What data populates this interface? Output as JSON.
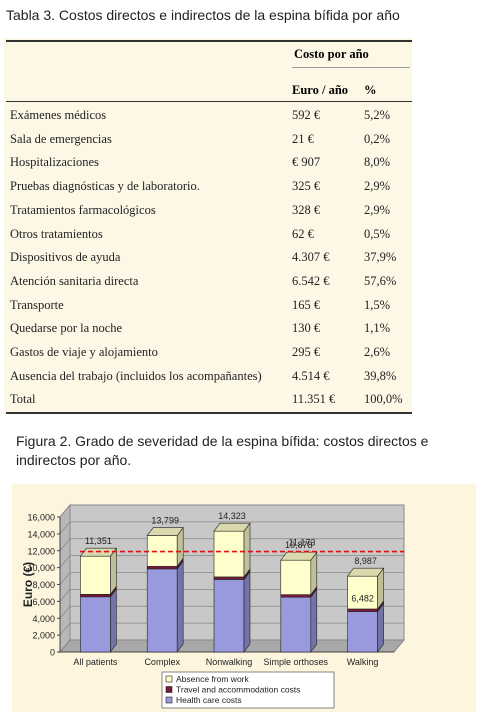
{
  "table": {
    "caption": "Tabla 3. Costos directos e indirectos de la espina bífida por año",
    "group_header": "Costo por año",
    "col_euro": "Euro / año",
    "col_pct": "%",
    "rows": [
      {
        "label": "Exámenes médicos",
        "euro": "592 €",
        "pct": "5,2%"
      },
      {
        "label": "Sala de emergencias",
        "euro": "21 €",
        "pct": "0,2%"
      },
      {
        "label": "Hospitalizaciones",
        "euro": "€ 907",
        "pct": "8,0%"
      },
      {
        "label": "Pruebas diagnósticas y de laboratorio.",
        "euro": "325 €",
        "pct": "2,9%"
      },
      {
        "label": "Tratamientos farmacológicos",
        "euro": "328 €",
        "pct": "2,9%"
      },
      {
        "label": "Otros tratamientos",
        "euro": "62 €",
        "pct": "0,5%"
      },
      {
        "label": "Dispositivos de ayuda",
        "euro": "4.307 €",
        "pct": "37,9%"
      },
      {
        "label": "Atención sanitaria directa",
        "euro": "6.542 €",
        "pct": "57,6%"
      },
      {
        "label": "Transporte",
        "euro": "165 €",
        "pct": "1,5%"
      },
      {
        "label": "Quedarse por la noche",
        "euro": "130 €",
        "pct": "1,1%"
      },
      {
        "label": "Gastos de viaje y alojamiento",
        "euro": "295 €",
        "pct": "2,6%"
      },
      {
        "label": "Ausencia del trabajo (incluidos los acompañantes)",
        "euro": "4.514 €",
        "pct": "39,8%"
      },
      {
        "label": "Total",
        "euro": "11.351 €",
        "pct": "100,0%"
      }
    ]
  },
  "figure": {
    "caption": "Figura 2. Grado de severidad de la espina bífida: costos directos e indirectos por año."
  },
  "chart_data": {
    "type": "bar",
    "stacked": true,
    "categories": [
      "All patients",
      "Complex",
      "Nonwalking",
      "Simple orthoses",
      "Walking"
    ],
    "series": [
      {
        "name": "Health care costs",
        "values": [
          6542,
          9850,
          8600,
          6500,
          4800
        ],
        "color": "#9999dd"
      },
      {
        "name": "Travel and accommodation costs",
        "values": [
          295,
          300,
          300,
          300,
          300
        ],
        "color": "#7a1a3a"
      },
      {
        "name": "Absence from work",
        "values": [
          4514,
          3649,
          5423,
          4078,
          3887
        ],
        "color": "#ffffcc"
      }
    ],
    "totals": [
      "11,351",
      "13,799",
      "14,323",
      "10,878",
      "8,987"
    ],
    "annotations": [
      "11,173",
      "6,482"
    ],
    "reference_line": 11900,
    "ylabel": "Euro (€)",
    "ylim": [
      0,
      16000
    ],
    "yticks": [
      "0",
      "2,000",
      "4,000",
      "6,000",
      "8,000",
      "10,000",
      "12,000",
      "14,000",
      "16,000"
    ],
    "legend_order": [
      "Absence from work",
      "Travel and accommodation costs",
      "Health care costs"
    ],
    "legend_position": "bottom-center",
    "grid": true
  }
}
